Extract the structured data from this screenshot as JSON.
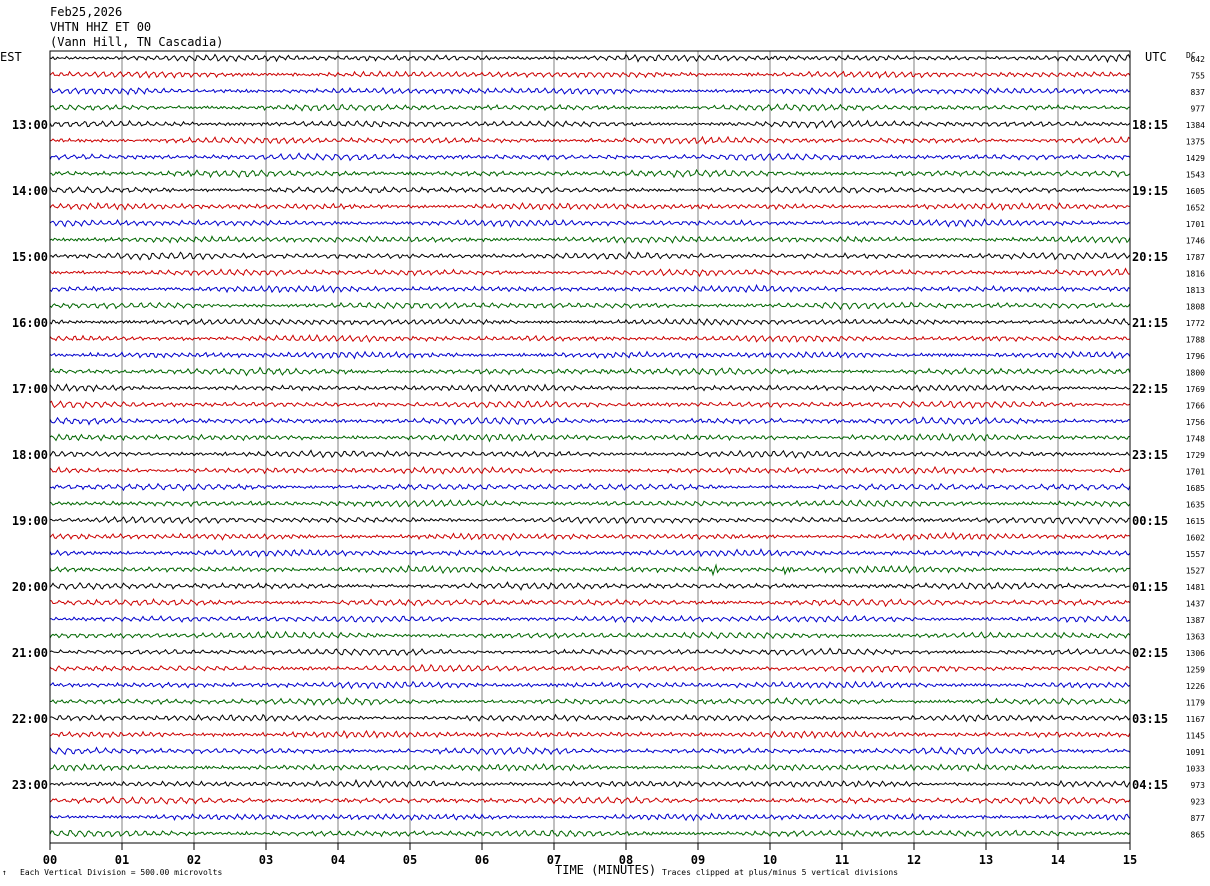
{
  "header": {
    "date": "Feb25,2026",
    "station": "VHTN HHZ ET 00",
    "location": "(Vann Hill, TN Cascadia)"
  },
  "left_tz": "EST",
  "right_tz": "UTC",
  "dc_label": "DC",
  "footer": {
    "scale_note": "Each Vertical Division =  500.00 microvolts",
    "x_title": "TIME (MINUTES)",
    "clip_note": "Traces clipped at plus/minus 5 vertical divisions"
  },
  "colors": {
    "trace_cycle": [
      "#000000",
      "#cc0000",
      "#0000cc",
      "#006600"
    ],
    "grid": "#808080",
    "frame": "#000000"
  },
  "chart_data": {
    "type": "line",
    "subtype": "helicorder",
    "minutes_per_line": 15,
    "x_ticks": [
      "00",
      "01",
      "02",
      "03",
      "04",
      "05",
      "06",
      "07",
      "08",
      "09",
      "10",
      "11",
      "12",
      "13",
      "14",
      "15"
    ],
    "hour_labels_est": [
      "13:00",
      "14:00",
      "15:00",
      "16:00",
      "17:00",
      "18:00",
      "19:00",
      "20:00",
      "21:00",
      "22:00",
      "23:00"
    ],
    "hour_labels_utc": [
      "18:15",
      "19:15",
      "20:15",
      "21:15",
      "22:15",
      "23:15",
      "00:15",
      "01:15",
      "02:15",
      "03:15",
      "04:15"
    ],
    "dc_offsets": [
      642,
      755,
      837,
      977,
      1384,
      1375,
      1429,
      1543,
      1605,
      1652,
      1701,
      1746,
      1787,
      1816,
      1813,
      1808,
      1772,
      1788,
      1796,
      1800,
      1769,
      1766,
      1756,
      1748,
      1729,
      1701,
      1685,
      1635,
      1615,
      1602,
      1557,
      1527,
      1481,
      1437,
      1387,
      1363,
      1306,
      1259,
      1226,
      1179,
      1167,
      1145,
      1091,
      1033,
      973,
      923,
      877,
      865
    ],
    "events": [
      {
        "line_index": 31,
        "minute": 9.2
      },
      {
        "line_index": 31,
        "minute": 10.2
      }
    ]
  }
}
